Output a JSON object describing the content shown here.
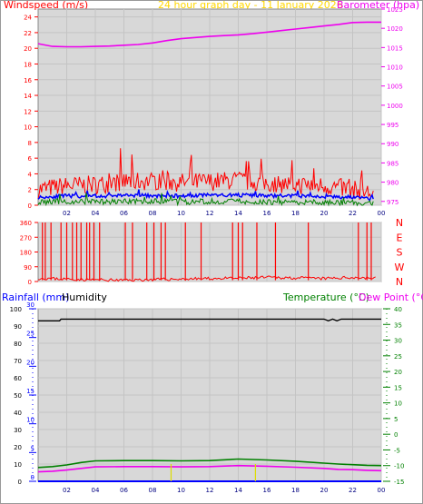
{
  "header": {
    "windspeed_label": "Windspeed (m/s)",
    "graph_title": "24 hour graph day - 11 January 2026",
    "barometer_label": "Barometer (hpa)"
  },
  "lower_header": {
    "rainfall_label": "Rainfall (mm)",
    "humidity_label": "Humidity",
    "temperature_label": "Temperature (°C)",
    "dewpoint_label": "Dew Point (°C)"
  },
  "colors": {
    "windspeed": "#ff0000",
    "wind_avg": "#0000ff",
    "wind_min": "#008000",
    "barometer": "#ee00ee",
    "direction": "#ff0000",
    "humidity": "#000000",
    "temperature": "#008000",
    "dewpoint": "#ee00ee",
    "rainfall": "#0000ff",
    "rain_rate": "#dddd00",
    "title": "#ffd700",
    "plot_bg": "#d8d8d8"
  },
  "chart_data": [
    {
      "type": "line",
      "title": "24 hour graph day - 11 January 2026",
      "x_ticks": [
        "02",
        "04",
        "06",
        "08",
        "10",
        "12",
        "14",
        "16",
        "18",
        "20",
        "22",
        "00"
      ],
      "xlim": [
        0,
        24
      ],
      "ylabel": "Windspeed (m/s)",
      "ylim": [
        0,
        25
      ],
      "y_ticks": [
        0,
        2,
        4,
        6,
        8,
        10,
        12,
        14,
        16,
        18,
        20,
        22,
        24
      ],
      "y2label": "Barometer (hpa)",
      "y2lim": [
        974,
        1025
      ],
      "y2_ticks": [
        975,
        980,
        985,
        990,
        995,
        1000,
        1005,
        1010,
        1015,
        1020,
        1025
      ],
      "grid": true,
      "series": [
        {
          "role": "windspeed",
          "x": [
            0,
            2,
            4,
            6,
            8,
            10,
            12,
            14,
            16,
            18,
            20,
            22,
            23.5
          ],
          "values": [
            2.0,
            2.5,
            2.6,
            3.0,
            3.1,
            2.9,
            3.0,
            3.2,
            2.8,
            2.6,
            2.5,
            2.0,
            1.5
          ]
        },
        {
          "role": "wind_avg",
          "x": [
            0,
            2,
            4,
            6,
            8,
            10,
            12,
            14,
            16,
            18,
            20,
            22,
            23.5
          ],
          "values": [
            1.0,
            1.2,
            1.1,
            1.3,
            1.2,
            1.2,
            1.3,
            1.3,
            1.2,
            1.2,
            1.1,
            1.0,
            0.8
          ]
        },
        {
          "role": "wind_min",
          "x": [
            0,
            2,
            4,
            6,
            8,
            10,
            12,
            14,
            16,
            18,
            20,
            22,
            23.5
          ],
          "values": [
            0.4,
            0.5,
            0.4,
            0.5,
            0.5,
            0.4,
            0.5,
            0.5,
            0.4,
            0.4,
            0.4,
            0.3,
            0.3
          ]
        },
        {
          "role": "barometer",
          "axis": "y2",
          "x": [
            0,
            1,
            2,
            3,
            4,
            5,
            6,
            7,
            8,
            9,
            10,
            11,
            12,
            13,
            14,
            15,
            16,
            17,
            18,
            19,
            20,
            21,
            22,
            23,
            24
          ],
          "values": [
            1016.0,
            1015.3,
            1015.2,
            1015.2,
            1015.3,
            1015.4,
            1015.6,
            1015.8,
            1016.2,
            1016.8,
            1017.3,
            1017.6,
            1017.9,
            1018.1,
            1018.3,
            1018.6,
            1019.0,
            1019.4,
            1019.8,
            1020.2,
            1020.6,
            1021.0,
            1021.5,
            1021.6,
            1021.6
          ]
        }
      ]
    },
    {
      "type": "line",
      "x_ticks": [
        "02",
        "04",
        "06",
        "08",
        "10",
        "12",
        "14",
        "16",
        "18",
        "20",
        "22",
        "00"
      ],
      "xlim": [
        0,
        24
      ],
      "ylim": [
        0,
        360
      ],
      "y_ticks": [
        0,
        90,
        180,
        270,
        360
      ],
      "y2_labels": [
        "N",
        "W",
        "S",
        "E",
        "N"
      ],
      "series": [
        {
          "role": "direction",
          "x": [
            0,
            2,
            4,
            6,
            8,
            10,
            12,
            14,
            16,
            18,
            20,
            22,
            23.5
          ],
          "values": [
            20,
            15,
            10,
            8,
            12,
            15,
            18,
            20,
            25,
            22,
            18,
            25,
            20
          ]
        }
      ],
      "spikes_to_360": [
        0.3,
        0.5,
        0.9,
        1.6,
        2.0,
        2.4,
        2.7,
        3.0,
        3.4,
        3.6,
        3.9,
        4.3,
        6.1,
        6.6,
        7.6,
        8.1,
        8.6,
        8.9,
        10.3,
        11.4,
        13.6,
        14.0,
        14.3,
        15.3,
        16.6,
        18.9,
        22.4,
        23.0,
        23.3
      ]
    },
    {
      "type": "line",
      "x_ticks": [
        "02",
        "04",
        "06",
        "08",
        "10",
        "12",
        "14",
        "16",
        "18",
        "20",
        "22",
        "00"
      ],
      "xlim": [
        0,
        24
      ],
      "ylabel": "Rainfall (mm)",
      "ylim": [
        0,
        30
      ],
      "y_ticks": [
        0,
        5,
        10,
        15,
        20,
        25,
        30
      ],
      "humidity_ticks": [
        0,
        10,
        20,
        30,
        40,
        50,
        60,
        70,
        80,
        90,
        100
      ],
      "y2label": "Temperature (°C)",
      "y2lim": [
        -15,
        40
      ],
      "y2_ticks": [
        -15,
        -10,
        -5,
        0,
        5,
        10,
        15,
        20,
        25,
        30,
        35,
        40
      ],
      "series": [
        {
          "role": "humidity",
          "axis": "humidity",
          "x": [
            0,
            1.5,
            1.6,
            3,
            6,
            9,
            12,
            15,
            18,
            20,
            20.3,
            20.6,
            20.9,
            21.2,
            22,
            24
          ],
          "values": [
            93,
            93,
            94,
            94,
            94,
            94,
            94,
            94,
            94,
            94,
            93,
            94,
            93,
            94,
            94,
            94
          ]
        },
        {
          "role": "temperature",
          "axis": "y2",
          "x": [
            0,
            1,
            2,
            3,
            4,
            6,
            8,
            10,
            12,
            14,
            16,
            18,
            20,
            21,
            22,
            23,
            24
          ],
          "values": [
            -10.6,
            -10.3,
            -9.8,
            -9.0,
            -8.5,
            -8.4,
            -8.4,
            -8.5,
            -8.4,
            -7.9,
            -8.2,
            -8.6,
            -9.2,
            -9.5,
            -9.7,
            -9.9,
            -10.0
          ]
        },
        {
          "role": "dewpoint",
          "axis": "y2",
          "x": [
            0,
            1,
            2,
            3,
            4,
            6,
            8,
            10,
            12,
            14,
            16,
            18,
            20,
            21,
            22,
            23,
            24
          ],
          "values": [
            -12.0,
            -11.8,
            -11.4,
            -10.9,
            -10.4,
            -10.3,
            -10.3,
            -10.4,
            -10.3,
            -10.0,
            -10.2,
            -10.5,
            -10.9,
            -11.2,
            -11.3,
            -11.5,
            -11.6
          ]
        },
        {
          "role": "rainfall",
          "x": [
            0,
            24
          ],
          "values": [
            0,
            0
          ]
        }
      ],
      "rain_rate_marks": [
        9.3,
        15.2
      ]
    }
  ]
}
